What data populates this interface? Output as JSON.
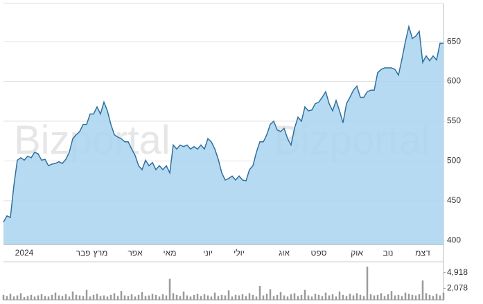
{
  "chart_data": [
    {
      "type": "area",
      "watermark": "Bizportal",
      "color": "#2f6f9f",
      "fill": "#a9d4ee",
      "categories": [
        null,
        null,
        null,
        null,
        null,
        null,
        "2024",
        null,
        null,
        null,
        null,
        null,
        null,
        null,
        null,
        null,
        null,
        null,
        null,
        null,
        null,
        null,
        null,
        "פבר",
        null,
        null,
        null,
        null,
        "מרץ",
        null,
        null,
        null,
        null,
        null,
        null,
        null,
        null,
        null,
        "אפר",
        null,
        null,
        null,
        null,
        null,
        null,
        null,
        null,
        null,
        "מאי",
        null,
        null,
        null,
        null,
        null,
        null,
        null,
        null,
        null,
        null,
        "יוני",
        null,
        null,
        null,
        null,
        null,
        null,
        null,
        null,
        "יולי",
        null,
        null,
        null,
        null,
        null,
        null,
        null,
        null,
        null,
        null,
        null,
        null,
        "אוג",
        null,
        null,
        null,
        null,
        null,
        null,
        null,
        null,
        null,
        "ספט",
        null,
        null,
        null,
        null,
        null,
        null,
        null,
        null,
        null,
        null,
        "אוק",
        null,
        null,
        null,
        null,
        null,
        null,
        null,
        null,
        "נוב",
        null,
        null,
        null,
        null,
        null,
        null,
        null,
        null,
        null,
        "דצמ",
        null,
        null,
        null,
        null,
        null,
        null
      ],
      "values": [
        423,
        431,
        429,
        469,
        501,
        504,
        501,
        506,
        504,
        511,
        509,
        501,
        502,
        494,
        496,
        497,
        499,
        497,
        502,
        511,
        528,
        533,
        537,
        546,
        546,
        559,
        559,
        568,
        559,
        574,
        563,
        546,
        533,
        530,
        528,
        524,
        524,
        515,
        507,
        494,
        489,
        501,
        494,
        498,
        489,
        494,
        489,
        494,
        485,
        520,
        515,
        520,
        518,
        520,
        515,
        518,
        515,
        520,
        515,
        528,
        524,
        515,
        502,
        485,
        476,
        478,
        481,
        476,
        481,
        476,
        475,
        489,
        494,
        511,
        524,
        524,
        533,
        546,
        550,
        539,
        537,
        541,
        528,
        520,
        541,
        555,
        550,
        568,
        563,
        564,
        572,
        574,
        580,
        587,
        572,
        563,
        576,
        563,
        548,
        572,
        580,
        589,
        594,
        580,
        580,
        587,
        589,
        589,
        611,
        615,
        617,
        617,
        617,
        615,
        608,
        628,
        650,
        669,
        654,
        657,
        663,
        624,
        632,
        626,
        632,
        627,
        648,
        648
      ],
      "ylim": [
        395,
        698
      ],
      "yticks": [
        400,
        450,
        500,
        550,
        600,
        650
      ],
      "grid": true
    },
    {
      "type": "bar",
      "color": "#9a9a9a",
      "values": [
        900,
        700,
        1100,
        600,
        800,
        1200,
        500,
        700,
        900,
        600,
        800,
        1000,
        700,
        600,
        900,
        1300,
        800,
        700,
        1000,
        600,
        1500,
        900,
        800,
        700,
        1800,
        600,
        900,
        1100,
        700,
        800,
        600,
        900,
        1200,
        700,
        1600,
        800,
        700,
        1000,
        600,
        900,
        1400,
        700,
        800,
        1100,
        900,
        600,
        1000,
        800,
        3800,
        1200,
        900,
        700,
        1500,
        800,
        600,
        900,
        1100,
        700,
        1000,
        800,
        600,
        1300,
        700,
        900,
        800,
        1700,
        600,
        900,
        800,
        1000,
        700,
        1200,
        900,
        600,
        2500,
        800,
        1100,
        1900,
        700,
        900,
        1400,
        800,
        600,
        1000,
        1200,
        700,
        900,
        1800,
        800,
        600,
        1100,
        900,
        700,
        1300,
        800,
        1000,
        600,
        1500,
        900,
        700,
        1100,
        800,
        1200,
        900,
        700,
        6000,
        1000,
        800,
        900,
        1200,
        700,
        1000,
        1600,
        800,
        900,
        700,
        1300,
        1100,
        900,
        800,
        1000,
        3500,
        1200,
        900,
        700,
        1100,
        800,
        1300
      ],
      "ylim": [
        0,
        6000
      ],
      "yticks": [
        {
          "value": 2078,
          "label": "2,078"
        },
        {
          "value": 4918,
          "label": "4,918"
        }
      ]
    }
  ]
}
